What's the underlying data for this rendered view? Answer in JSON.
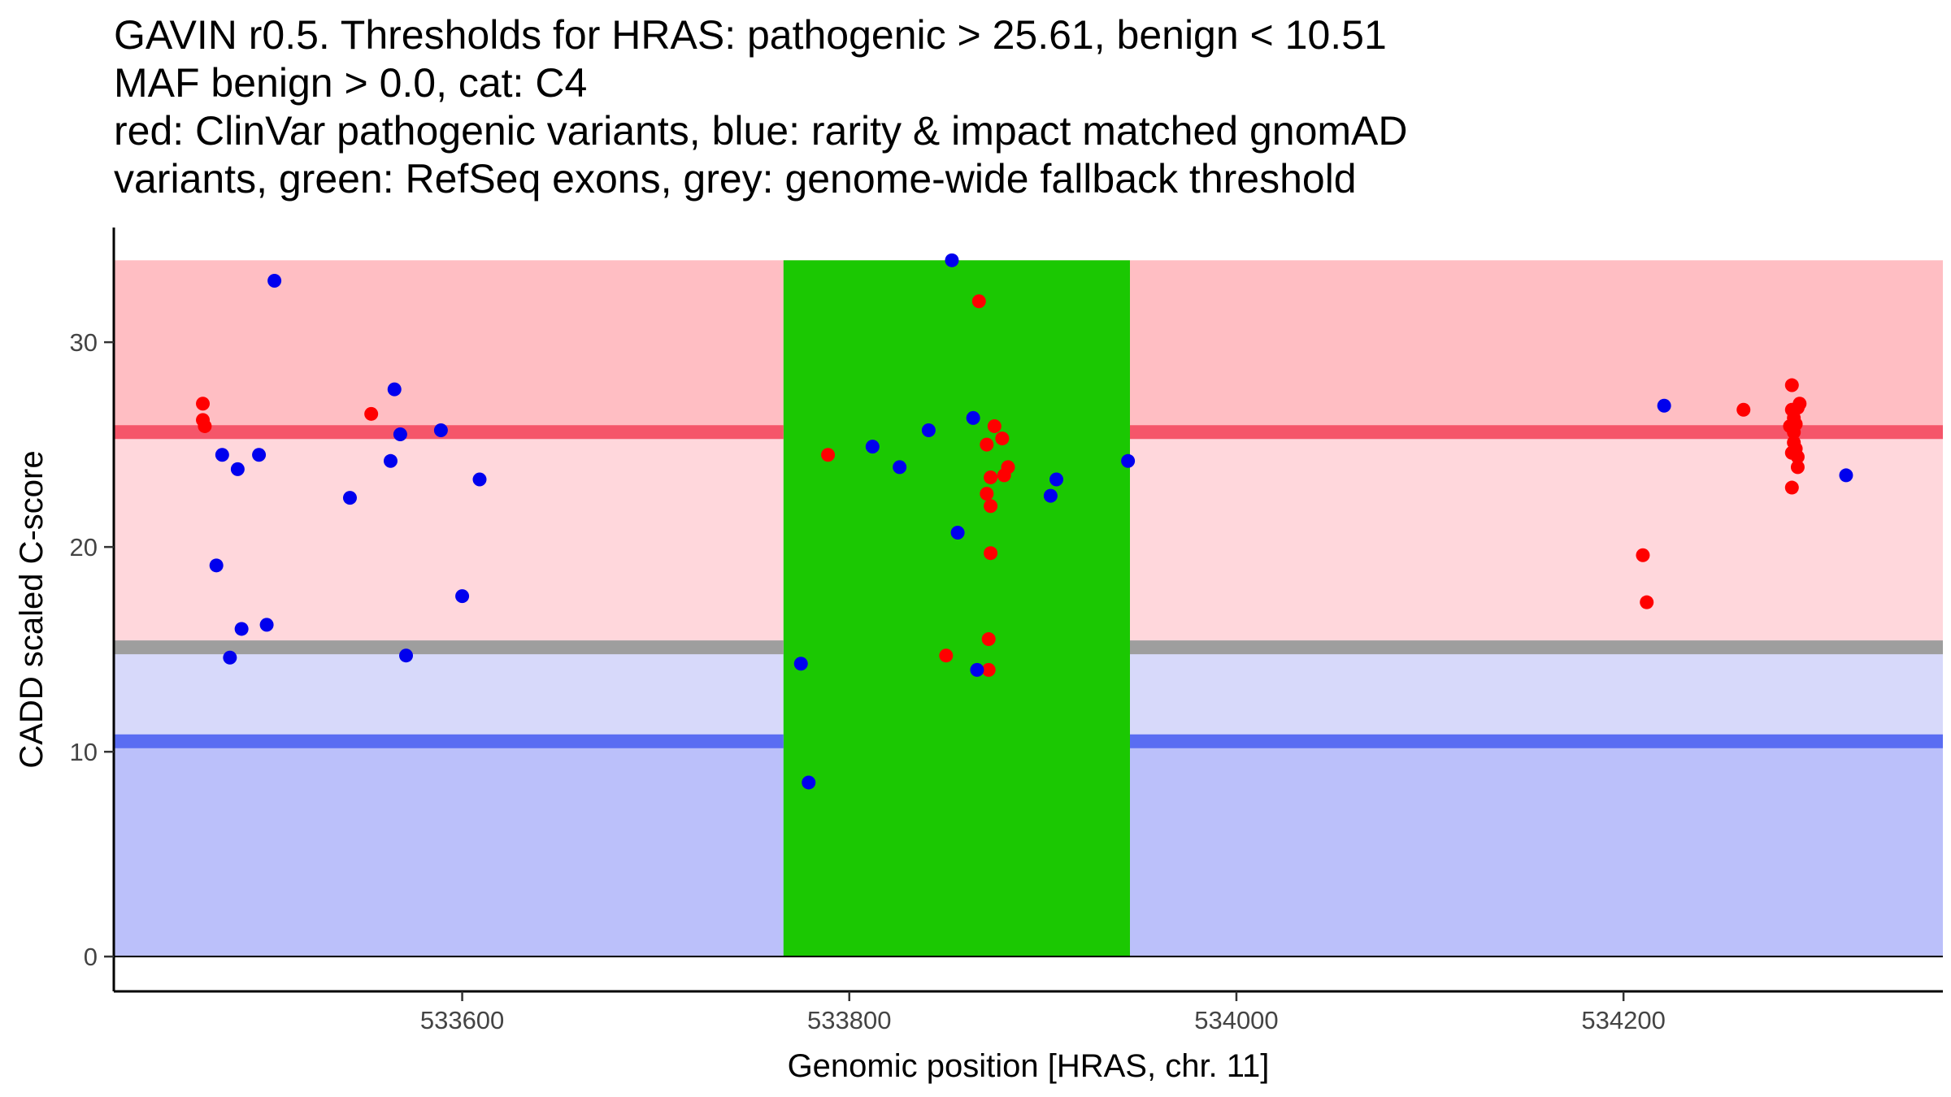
{
  "chart_data": {
    "type": "scatter",
    "title_lines": [
      "GAVIN r0.5. Thresholds for HRAS: pathogenic > 25.61, benign < 10.51",
      "MAF benign > 0.0, cat: C4",
      "red: ClinVar pathogenic variants, blue: rarity & impact matched gnomAD",
      "variants, green: RefSeq exons, grey: genome-wide fallback threshold"
    ],
    "xlabel": "Genomic position [HRAS, chr. 11]",
    "ylabel": "CADD scaled C-score",
    "xlim": [
      533420,
      534365
    ],
    "ylim": [
      -1.7,
      35.6
    ],
    "x_ticks": [
      533600,
      533800,
      534000,
      534200
    ],
    "x_tick_labels": [
      "533600",
      "533800",
      "534000",
      "534200"
    ],
    "y_ticks": [
      0,
      10,
      20,
      30
    ],
    "y_tick_labels": [
      "0",
      "10",
      "20",
      "30"
    ],
    "grid": false,
    "colors": {
      "pathogenic_region": "#ffbec3",
      "pathogenic_light_region": "#ffd7dc",
      "benign_light_region": "#d7d9fa",
      "benign_region": "#bbc0fa",
      "pathogenic_line": "#f5566a",
      "fallback_line": "#9e9e9e",
      "benign_line": "#5a6df2",
      "exon": "#1bc802",
      "pathogenic_point": "#ff0000",
      "gnomad_point": "#0000ee"
    },
    "bands": [
      {
        "name": "pathogenic-zone",
        "y0": 25.61,
        "y1": 34.0,
        "color_key": "pathogenic_region"
      },
      {
        "name": "uncertain-upper-zone",
        "y0": 15.0,
        "y1": 25.61,
        "color_key": "pathogenic_light_region"
      },
      {
        "name": "uncertain-lower-zone",
        "y0": 10.51,
        "y1": 15.0,
        "color_key": "benign_light_region"
      },
      {
        "name": "benign-zone",
        "y0": 0.0,
        "y1": 10.51,
        "color_key": "benign_region"
      }
    ],
    "threshold_lines": [
      {
        "name": "pathogenic-threshold-line",
        "y": 25.61,
        "color_key": "pathogenic_line"
      },
      {
        "name": "fallback-threshold-line",
        "y": 15.1,
        "color_key": "fallback_line"
      },
      {
        "name": "benign-threshold-line",
        "y": 10.51,
        "color_key": "benign_line"
      }
    ],
    "exons": [
      {
        "name": "exon-region",
        "x0": 533766,
        "x1": 533945,
        "y0": 0.0,
        "y1": 34.0
      }
    ],
    "series": [
      {
        "name": "ClinVar pathogenic variants",
        "color_key": "pathogenic_point",
        "points": [
          [
            533466,
            27.0
          ],
          [
            533466,
            26.2
          ],
          [
            533467,
            25.9
          ],
          [
            533553,
            26.5
          ],
          [
            533789,
            24.5
          ],
          [
            533867,
            32.0
          ],
          [
            533871,
            25.0
          ],
          [
            533875,
            25.9
          ],
          [
            533879,
            25.3
          ],
          [
            533873,
            23.4
          ],
          [
            533880,
            23.5
          ],
          [
            533882,
            23.9
          ],
          [
            533871,
            22.6
          ],
          [
            533873,
            22.0
          ],
          [
            533873,
            19.7
          ],
          [
            533872,
            15.5
          ],
          [
            533872,
            14.0
          ],
          [
            533850,
            14.7
          ],
          [
            534210,
            19.6
          ],
          [
            534212,
            17.3
          ],
          [
            534262,
            26.7
          ],
          [
            534287,
            27.9
          ],
          [
            534287,
            26.7
          ],
          [
            534288,
            26.3
          ],
          [
            534289,
            26.0
          ],
          [
            534290,
            26.8
          ],
          [
            534288,
            25.6
          ],
          [
            534288,
            25.1
          ],
          [
            534289,
            24.8
          ],
          [
            534287,
            24.6
          ],
          [
            534290,
            24.4
          ],
          [
            534290,
            23.9
          ],
          [
            534287,
            22.9
          ],
          [
            534291,
            27.0
          ],
          [
            534286,
            25.9
          ]
        ]
      },
      {
        "name": "gnomAD matched variants",
        "color_key": "gnomad_point",
        "points": [
          [
            533503,
            33.0
          ],
          [
            533476,
            24.5
          ],
          [
            533495,
            24.5
          ],
          [
            533484,
            23.8
          ],
          [
            533473,
            19.1
          ],
          [
            533486,
            16.0
          ],
          [
            533499,
            16.2
          ],
          [
            533480,
            14.6
          ],
          [
            533565,
            27.7
          ],
          [
            533568,
            25.5
          ],
          [
            533589,
            25.7
          ],
          [
            533563,
            24.2
          ],
          [
            533542,
            22.4
          ],
          [
            533609,
            23.3
          ],
          [
            533600,
            17.6
          ],
          [
            533571,
            14.7
          ],
          [
            533853,
            34.0
          ],
          [
            533864,
            26.3
          ],
          [
            533812,
            24.9
          ],
          [
            533841,
            25.7
          ],
          [
            533826,
            23.9
          ],
          [
            533907,
            23.3
          ],
          [
            533904,
            22.5
          ],
          [
            533856,
            20.7
          ],
          [
            533775,
            14.3
          ],
          [
            533866,
            14.0
          ],
          [
            533779,
            8.5
          ],
          [
            533944,
            24.2
          ],
          [
            534221,
            26.9
          ],
          [
            534315,
            23.5
          ]
        ]
      }
    ]
  }
}
